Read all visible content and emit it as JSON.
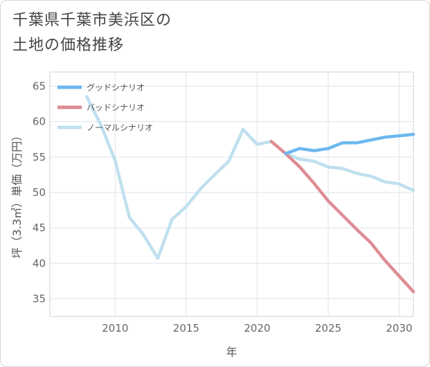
{
  "title": {
    "line1": "千葉県千葉市美浜区の",
    "line2": "土地の価格推移"
  },
  "chart_data": {
    "type": "line",
    "xlabel": "年",
    "ylabel": "坪（3.3㎡）単価（万円）",
    "xlim": [
      2005.4,
      2031
    ],
    "ylim": [
      32.5,
      67
    ],
    "xticks": [
      2010,
      2015,
      2020,
      2025,
      2030
    ],
    "yticks": [
      35,
      40,
      45,
      50,
      55,
      60,
      65
    ],
    "grid": true,
    "legend_position": "top-left",
    "series": [
      {
        "name": "グッドシナリオ",
        "color": "#6cb8ee",
        "x": [
          2022,
          2023,
          2024,
          2025,
          2026,
          2027,
          2028,
          2029,
          2030,
          2031
        ],
        "y": [
          55.5,
          56.2,
          55.9,
          56.2,
          57.0,
          57.0,
          57.4,
          57.8,
          58.0,
          58.2
        ]
      },
      {
        "name": "バッドシナリオ",
        "color": "#de8c93",
        "x": [
          2021,
          2022,
          2023,
          2024,
          2025,
          2026,
          2027,
          2028,
          2029,
          2030,
          2031
        ],
        "y": [
          57.2,
          55.5,
          53.6,
          51.3,
          48.8,
          46.8,
          44.8,
          42.9,
          40.4,
          38.2,
          36.0
        ]
      },
      {
        "name": "ノーマルシナリオ",
        "color": "#bfe0ee",
        "x": [
          2008,
          2009,
          2010,
          2011,
          2012,
          2013,
          2014,
          2015,
          2016,
          2017,
          2018,
          2019,
          2020,
          2021,
          2022,
          2023,
          2024,
          2025,
          2026,
          2027,
          2028,
          2029,
          2030,
          2031
        ],
        "y": [
          63.5,
          59.5,
          54.5,
          46.5,
          44.0,
          40.7,
          46.2,
          48.0,
          50.5,
          52.5,
          54.4,
          58.9,
          56.8,
          57.2,
          55.5,
          54.7,
          54.4,
          53.6,
          53.4,
          52.7,
          52.3,
          51.5,
          51.2,
          50.3
        ]
      }
    ]
  }
}
